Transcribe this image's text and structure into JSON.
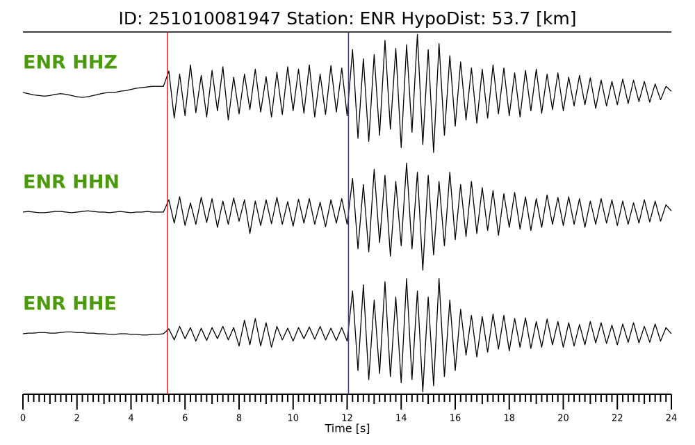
{
  "chart_data": {
    "type": "line",
    "title": "ID: 251010081947   Station: ENR   HypoDist:    53.7 [km]",
    "xlabel": "Time [s]",
    "xlim": [
      0,
      24
    ],
    "ylim": [
      -1,
      1
    ],
    "xticks": [
      0,
      2,
      4,
      6,
      8,
      10,
      12,
      14,
      16,
      18,
      20,
      22,
      24
    ],
    "xminorticks": [
      0.2,
      0.4,
      0.6,
      0.8,
      1,
      1.2,
      1.4,
      1.6,
      1.8,
      2.2,
      2.4,
      2.6,
      2.8,
      3,
      3.2,
      3.4,
      3.6,
      3.8,
      4.2,
      4.4,
      4.6,
      4.8,
      5,
      5.2,
      5.4,
      5.6,
      5.8,
      6.2,
      6.4,
      6.6,
      6.8,
      7,
      7.2,
      7.4,
      7.6,
      7.8,
      8.2,
      8.4,
      8.6,
      8.8,
      9,
      9.2,
      9.4,
      9.6,
      9.8,
      10.2,
      10.4,
      10.6,
      10.8,
      11,
      11.2,
      11.4,
      11.6,
      11.8,
      12.2,
      12.4,
      12.6,
      12.8,
      13,
      13.2,
      13.4,
      13.6,
      13.8,
      14.2,
      14.4,
      14.6,
      14.8,
      15,
      15.2,
      15.4,
      15.6,
      15.8,
      16.2,
      16.4,
      16.6,
      16.8,
      17,
      17.2,
      17.4,
      17.6,
      17.8,
      18.2,
      18.4,
      18.6,
      18.8,
      19,
      19.2,
      19.4,
      19.6,
      19.8,
      20.2,
      20.4,
      20.6,
      20.8,
      21,
      21.2,
      21.4,
      21.6,
      21.8,
      22.2,
      22.4,
      22.6,
      22.8,
      23,
      23.2,
      23.4,
      23.6,
      23.8
    ],
    "markers": [
      {
        "x": 5.35,
        "color": "#e41a1c"
      },
      {
        "x": 12.05,
        "color": "#2b3bb0"
      }
    ],
    "label_color": "#4a9a0c",
    "x": [
      0,
      0.2,
      0.4,
      0.6,
      0.8,
      1,
      1.2,
      1.4,
      1.6,
      1.8,
      2,
      2.2,
      2.4,
      2.6,
      2.8,
      3,
      3.2,
      3.4,
      3.6,
      3.8,
      4,
      4.2,
      4.4,
      4.6,
      4.8,
      5,
      5.2,
      5.4,
      5.6,
      5.8,
      6,
      6.2,
      6.4,
      6.6,
      6.8,
      7,
      7.2,
      7.4,
      7.6,
      7.8,
      8,
      8.2,
      8.4,
      8.6,
      8.8,
      9,
      9.2,
      9.4,
      9.6,
      9.8,
      10,
      10.2,
      10.4,
      10.6,
      10.8,
      11,
      11.2,
      11.4,
      11.6,
      11.8,
      12,
      12.2,
      12.4,
      12.6,
      12.8,
      13,
      13.2,
      13.4,
      13.6,
      13.8,
      14,
      14.2,
      14.4,
      14.6,
      14.8,
      15,
      15.2,
      15.4,
      15.6,
      15.8,
      16,
      16.2,
      16.4,
      16.6,
      16.8,
      17,
      17.2,
      17.4,
      17.6,
      17.8,
      18,
      18.2,
      18.4,
      18.6,
      18.8,
      19,
      19.2,
      19.4,
      19.6,
      19.8,
      20,
      20.2,
      20.4,
      20.6,
      20.8,
      21,
      21.2,
      21.4,
      21.6,
      21.8,
      22,
      22.2,
      22.4,
      22.6,
      22.8,
      23,
      23.2,
      23.4,
      23.6,
      23.8,
      24
    ],
    "series": [
      {
        "name": "ENR HHZ",
        "color": "#000000",
        "values": [
          0,
          -0.02,
          -0.04,
          -0.05,
          -0.06,
          -0.05,
          -0.03,
          -0.02,
          -0.03,
          -0.05,
          -0.07,
          -0.08,
          -0.07,
          -0.05,
          -0.03,
          -0.01,
          0,
          0,
          0.02,
          0.03,
          0.05,
          0.07,
          0.08,
          0.09,
          0.1,
          0.1,
          0.1,
          0.35,
          -0.42,
          0.3,
          -0.38,
          0.45,
          -0.33,
          0.28,
          -0.4,
          0.36,
          -0.3,
          0.42,
          -0.45,
          0.25,
          -0.35,
          0.3,
          -0.28,
          0.38,
          -0.32,
          0.26,
          -0.4,
          0.33,
          -0.36,
          0.42,
          -0.3,
          0.38,
          -0.34,
          0.45,
          -0.4,
          0.3,
          -0.36,
          0.44,
          -0.32,
          0.4,
          -0.38,
          0.7,
          -0.75,
          0.55,
          -0.8,
          0.62,
          -0.7,
          0.85,
          -0.6,
          0.72,
          -0.9,
          0.78,
          -0.65,
          0.95,
          -0.85,
          0.7,
          -0.98,
          0.8,
          -0.7,
          0.6,
          -0.55,
          0.5,
          -0.45,
          0.4,
          -0.5,
          0.38,
          -0.42,
          0.45,
          -0.35,
          0.4,
          -0.38,
          0.32,
          -0.4,
          0.36,
          -0.3,
          0.38,
          -0.34,
          0.3,
          -0.28,
          0.32,
          -0.3,
          0.25,
          -0.22,
          0.28,
          -0.2,
          0.24,
          -0.26,
          0.2,
          -0.22,
          0.18,
          -0.2,
          0.22,
          -0.18,
          0.2,
          -0.15,
          0.18,
          -0.16,
          0.14,
          -0.12,
          0.1,
          0.02
        ]
      },
      {
        "name": "ENR HHN",
        "color": "#000000",
        "values": [
          0,
          0.01,
          0,
          -0.01,
          -0.01,
          0,
          0.01,
          0.01,
          0,
          -0.01,
          0,
          0.01,
          0.02,
          0.01,
          0,
          0,
          -0.01,
          0,
          0.01,
          0,
          -0.01,
          0,
          0,
          0.01,
          0,
          0,
          0,
          0.2,
          -0.18,
          0.25,
          -0.22,
          0.15,
          -0.2,
          0.24,
          -0.17,
          0.22,
          -0.25,
          0.18,
          -0.2,
          0.23,
          -0.15,
          0.2,
          -0.35,
          0.18,
          -0.22,
          0.2,
          -0.19,
          0.24,
          -0.2,
          0.17,
          -0.23,
          0.21,
          -0.18,
          0.22,
          -0.2,
          0.16,
          -0.24,
          0.2,
          -0.18,
          0.22,
          -0.2,
          0.55,
          -0.6,
          0.45,
          -0.65,
          0.7,
          -0.5,
          0.6,
          -0.72,
          0.5,
          -0.55,
          0.8,
          -0.6,
          0.65,
          -0.95,
          0.6,
          -0.7,
          0.5,
          -0.55,
          0.65,
          -0.45,
          0.45,
          -0.4,
          0.5,
          -0.35,
          0.4,
          -0.3,
          0.35,
          -0.38,
          0.3,
          -0.25,
          0.32,
          -0.28,
          0.25,
          -0.3,
          0.22,
          -0.25,
          0.28,
          -0.2,
          0.24,
          -0.22,
          0.25,
          -0.2,
          0.22,
          -0.25,
          0.18,
          -0.2,
          0.22,
          -0.18,
          0.2,
          -0.22,
          0.18,
          -0.2,
          0.15,
          -0.18,
          0.2,
          -0.16,
          0.18,
          -0.15,
          0.12,
          0.02
        ]
      },
      {
        "name": "ENR HHE",
        "color": "#000000",
        "values": [
          0,
          0.01,
          0.01,
          0.02,
          0.02,
          0.01,
          0.01,
          0.02,
          0.03,
          0.03,
          0.02,
          0.02,
          0.01,
          0.01,
          0,
          0,
          -0.01,
          -0.01,
          0,
          0,
          -0.01,
          -0.01,
          -0.02,
          -0.02,
          -0.01,
          -0.01,
          0,
          0.08,
          -0.1,
          0.12,
          -0.08,
          0.1,
          -0.12,
          0.09,
          -0.11,
          0.1,
          -0.08,
          0.12,
          -0.1,
          0.1,
          -0.2,
          0.22,
          -0.18,
          0.25,
          -0.2,
          0.18,
          -0.22,
          0.12,
          -0.1,
          0.09,
          -0.12,
          0.1,
          -0.08,
          0.11,
          -0.09,
          0.12,
          -0.1,
          0.09,
          -0.11,
          0.1,
          -0.12,
          0.7,
          -0.6,
          0.8,
          -0.75,
          0.55,
          -0.65,
          0.85,
          -0.7,
          0.6,
          -0.8,
          0.9,
          -0.75,
          0.7,
          -0.95,
          0.6,
          -0.85,
          0.9,
          -0.7,
          0.55,
          -0.6,
          0.4,
          -0.35,
          0.3,
          -0.38,
          0.28,
          -0.3,
          0.32,
          -0.25,
          0.3,
          -0.28,
          0.25,
          -0.22,
          0.26,
          -0.24,
          0.2,
          -0.22,
          0.24,
          -0.18,
          0.2,
          -0.22,
          0.18,
          -0.2,
          0.15,
          -0.18,
          0.2,
          -0.15,
          0.18,
          -0.16,
          0.14,
          -0.18,
          0.16,
          -0.14,
          0.18,
          -0.15,
          0.12,
          -0.14,
          0.16,
          -0.12,
          0.1,
          0
        ]
      }
    ]
  }
}
